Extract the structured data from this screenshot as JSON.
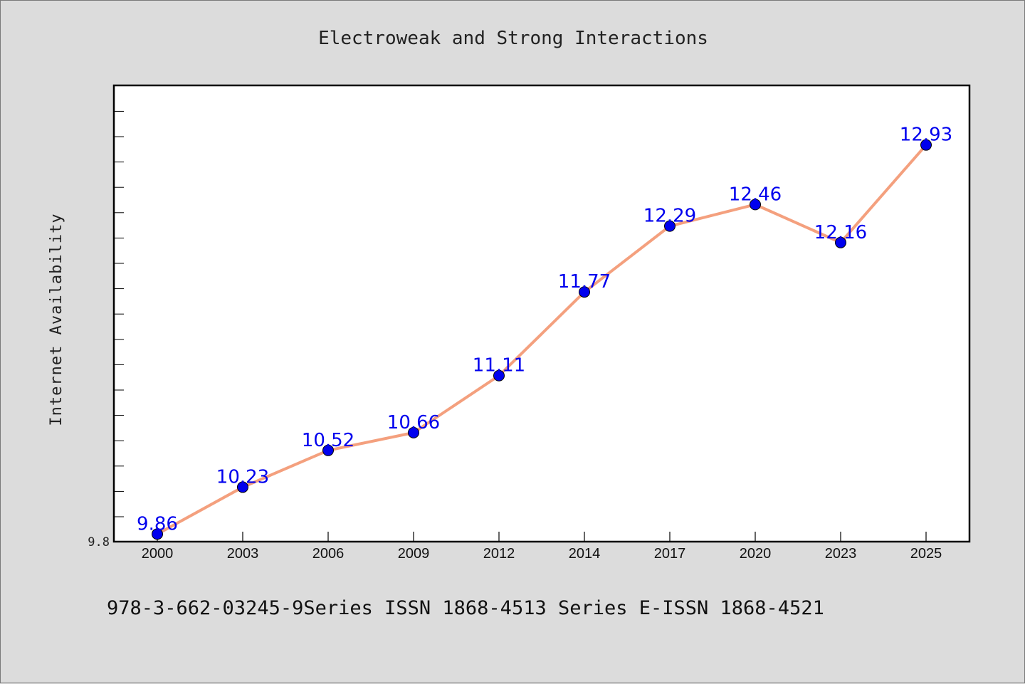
{
  "chart_data": {
    "type": "line",
    "title": "Electroweak and Strong Interactions",
    "xlabel": "",
    "ylabel": "Internet Availability",
    "categories": [
      "2000",
      "2003",
      "2006",
      "2009",
      "2012",
      "2014",
      "2017",
      "2020",
      "2023",
      "2025"
    ],
    "series": [
      {
        "values": [
          9.86,
          10.23,
          10.52,
          10.66,
          11.11,
          11.77,
          12.29,
          12.46,
          12.16,
          12.93
        ],
        "labels": [
          "9.86",
          "10.23",
          "10.52",
          "10.66",
          "11.11",
          "11.77",
          "12.29",
          "12.46",
          "12.16",
          "12.93"
        ],
        "line_color": "#f4a07e",
        "marker_color": "#0000ee"
      }
    ],
    "y_tick_labels": [
      "9.8"
    ],
    "ylim": [
      9.8,
      13.4
    ],
    "grid": false,
    "legend": "none"
  },
  "footer": {
    "text": "978-3-662-03245-9Series ISSN 1868-4513 Series E-ISSN 1868-4521"
  },
  "colors": {
    "background": "#dcdcdc",
    "plot_background": "#ffffff",
    "line": "#f4a07e",
    "marker": "#0000ee",
    "data_label": "#0000ee"
  }
}
